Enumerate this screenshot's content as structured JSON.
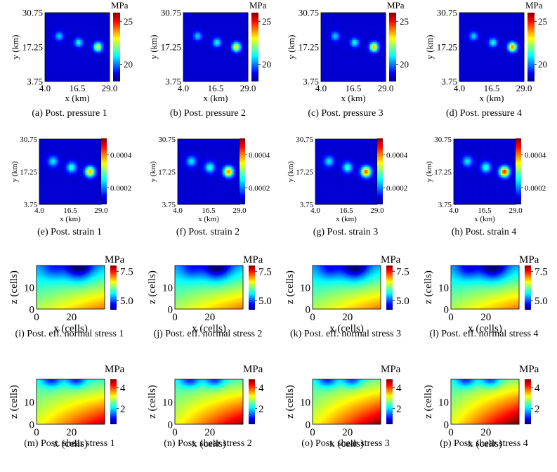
{
  "colormap": [
    "#00007f",
    "#0000ff",
    "#0080ff",
    "#00ffff",
    "#80ff80",
    "#ffff00",
    "#ff8000",
    "#ff0000",
    "#800000"
  ],
  "rows": [
    {
      "kind": "map",
      "unit": "MPa",
      "xlabel": "x (km)",
      "ylabel": "y (km)",
      "x_ticks": [
        "4.0",
        "16.5",
        "29.0"
      ],
      "y_ticks": [
        "30.75",
        "17.25",
        "3.75"
      ],
      "colorbar_ticks": [
        {
          "label": "25",
          "value": 25
        },
        {
          "label": "20",
          "value": 20
        }
      ],
      "colorbar_range": [
        18,
        26
      ],
      "panels": [
        {
          "caption": "(a) Post. pressure 1"
        },
        {
          "caption": "(b) Post. pressure 2"
        },
        {
          "caption": "(c) Post. pressure 3"
        },
        {
          "caption": "(d) Post. pressure 4"
        }
      ]
    },
    {
      "kind": "map",
      "unit": "",
      "xlabel": "x (km)",
      "ylabel": "y (km)",
      "x_ticks": [
        "4.0",
        "16.5",
        "29.0"
      ],
      "y_ticks": [
        "30.75",
        "17.25",
        "3.75"
      ],
      "colorbar_ticks": [
        {
          "label": "0.0004",
          "value": 0.0004
        },
        {
          "label": "0.0002",
          "value": 0.0002
        }
      ],
      "colorbar_range": [
        0.0001,
        0.0005
      ],
      "panels": [
        {
          "caption": "(e) Post. strain 1"
        },
        {
          "caption": "(f) Post. strain 2"
        },
        {
          "caption": "(g) Post. strain 3"
        },
        {
          "caption": "(h) Post. strain 4"
        }
      ]
    },
    {
      "kind": "section-normal",
      "unit": "MPa",
      "xlabel": "x (cells)",
      "ylabel": "z (cells)",
      "x_ticks": [
        "0",
        "20"
      ],
      "y_ticks": [
        "10",
        "0"
      ],
      "colorbar_ticks": [
        {
          "label": "7.5",
          "value": 7.5
        },
        {
          "label": "5.0",
          "value": 5.0
        }
      ],
      "colorbar_range": [
        4.2,
        8.0
      ],
      "panels": [
        {
          "caption": "(i) Post. eff. normal stress 1"
        },
        {
          "caption": "(j) Post. eff. normal stress 2"
        },
        {
          "caption": "(k) Post. eff. normal stress 3"
        },
        {
          "caption": "(l) Post. eff. normal stress 4"
        }
      ]
    },
    {
      "kind": "section-shear",
      "unit": "MPa",
      "xlabel": "x (cells)",
      "ylabel": "z (cells)",
      "x_ticks": [
        "0",
        "20"
      ],
      "y_ticks": [
        "10",
        "0"
      ],
      "colorbar_ticks": [
        {
          "label": "4",
          "value": 4
        },
        {
          "label": "2",
          "value": 2
        }
      ],
      "colorbar_range": [
        0.5,
        4.8
      ],
      "panels": [
        {
          "caption": "(m) Post. shear stress 1"
        },
        {
          "caption": "(n) Post. shear stress 2"
        },
        {
          "caption": "(o) Post. shear stress 3"
        },
        {
          "caption": "(p) Post. shear stress 4"
        }
      ]
    }
  ],
  "chart_data": {
    "type": "heatmap",
    "title": "",
    "panels": [
      "(a) Post. pressure 1",
      "(b) Post. pressure 2",
      "(c) Post. pressure 3",
      "(d) Post. pressure 4",
      "(e) Post. strain 1",
      "(f) Post. strain 2",
      "(g) Post. strain 3",
      "(h) Post. strain 4",
      "(i) Post. eff. normal stress 1",
      "(j) Post. eff. normal stress 2",
      "(k) Post. eff. normal stress 3",
      "(l) Post. eff. normal stress 4",
      "(m) Post. shear stress 1",
      "(n) Post. shear stress 2",
      "(o) Post. shear stress 3",
      "(p) Post. shear stress 4"
    ],
    "pressure": {
      "xlabel": "x (km)",
      "ylabel": "y (km)",
      "xlim": [
        4.0,
        29.0
      ],
      "ylim": [
        3.75,
        30.75
      ],
      "colorbar": "MPa",
      "clim": [
        18,
        26
      ]
    },
    "strain": {
      "xlabel": "x (km)",
      "ylabel": "y (km)",
      "xlim": [
        4.0,
        29.0
      ],
      "ylim": [
        3.75,
        30.75
      ],
      "clim": [
        0.0001,
        0.0005
      ]
    },
    "eff_normal_stress": {
      "xlabel": "x (cells)",
      "ylabel": "z (cells)",
      "xlim": [
        0,
        39
      ],
      "ylim": [
        0,
        20
      ],
      "colorbar": "MPa",
      "clim": [
        4.2,
        8.0
      ]
    },
    "shear_stress": {
      "xlabel": "x (cells)",
      "ylabel": "z (cells)",
      "xlim": [
        0,
        39
      ],
      "ylim": [
        0,
        20
      ],
      "colorbar": "MPa",
      "clim": [
        0.5,
        4.8
      ]
    },
    "hotspots_km": [
      {
        "x": 9.5,
        "y": 21.5,
        "level": 0.45
      },
      {
        "x": 17.0,
        "y": 19.0,
        "level": 0.55
      },
      {
        "x": 24.5,
        "y": 17.25,
        "level": 1.0
      }
    ]
  }
}
